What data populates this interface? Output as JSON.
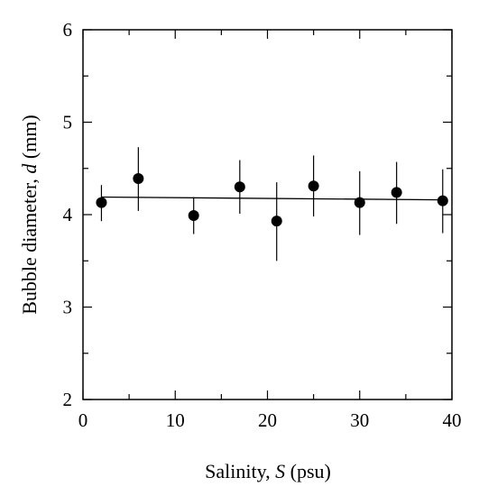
{
  "chart_data": {
    "type": "scatter",
    "xlabel_prefix": "Salinity, ",
    "xlabel_var": "S",
    "xlabel_suffix": " (psu)",
    "ylabel_prefix": "Bubble diameter, ",
    "ylabel_var": "d",
    "ylabel_suffix": " (mm)",
    "xlim": [
      0,
      40
    ],
    "ylim": [
      2,
      6
    ],
    "x_ticks": [
      0,
      10,
      20,
      30,
      40
    ],
    "y_ticks": [
      2,
      3,
      4,
      5,
      6
    ],
    "grid": false,
    "points": [
      {
        "x": 2,
        "y": 4.13,
        "err_low": 3.93,
        "err_high": 4.32
      },
      {
        "x": 6,
        "y": 4.39,
        "err_low": 4.04,
        "err_high": 4.73
      },
      {
        "x": 12,
        "y": 3.99,
        "err_low": 3.79,
        "err_high": 4.19
      },
      {
        "x": 17,
        "y": 4.3,
        "err_low": 4.01,
        "err_high": 4.59
      },
      {
        "x": 21,
        "y": 3.93,
        "err_low": 3.5,
        "err_high": 4.35
      },
      {
        "x": 25,
        "y": 4.31,
        "err_low": 3.98,
        "err_high": 4.64
      },
      {
        "x": 30,
        "y": 4.13,
        "err_low": 3.78,
        "err_high": 4.47
      },
      {
        "x": 34,
        "y": 4.24,
        "err_low": 3.9,
        "err_high": 4.57
      },
      {
        "x": 39,
        "y": 4.15,
        "err_low": 3.8,
        "err_high": 4.49
      }
    ],
    "fit_line": {
      "x": [
        2,
        39
      ],
      "y": [
        4.19,
        4.16
      ]
    }
  }
}
